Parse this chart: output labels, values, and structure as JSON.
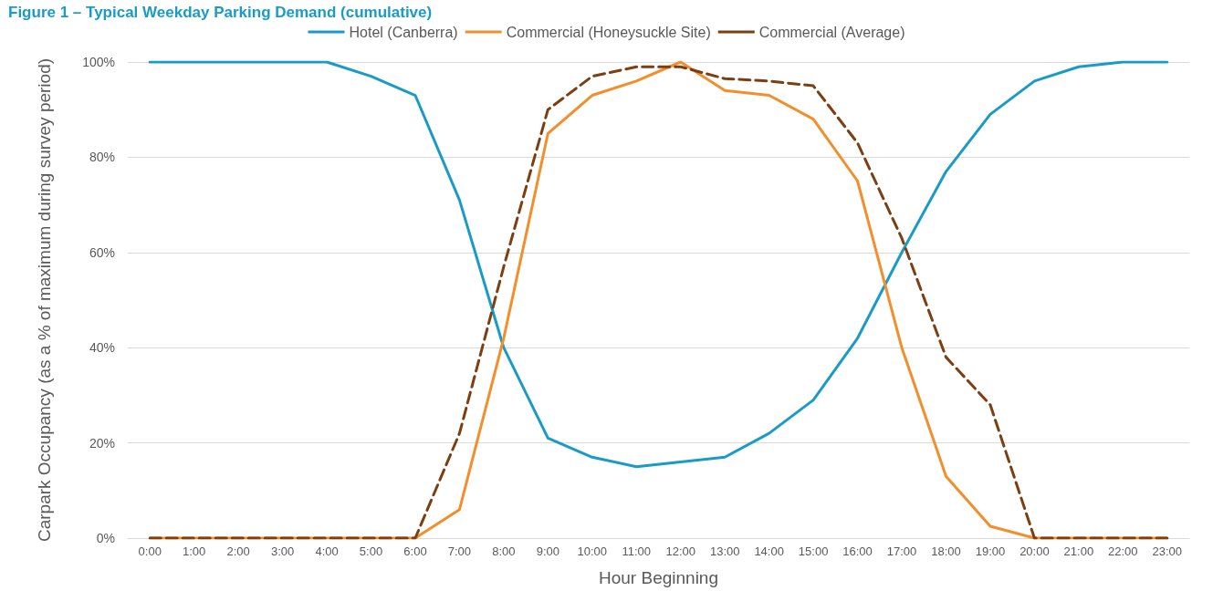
{
  "chart_data": {
    "type": "line",
    "title": "Figure 1 – Typical Weekday Parking Demand (cumulative)",
    "xlabel": "Hour Beginning",
    "ylabel": "Carpark Occupancy (as a % of maximum during survey period)",
    "categories": [
      "0:00",
      "1:00",
      "2:00",
      "3:00",
      "4:00",
      "5:00",
      "6:00",
      "7:00",
      "8:00",
      "9:00",
      "10:00",
      "11:00",
      "12:00",
      "13:00",
      "14:00",
      "15:00",
      "16:00",
      "17:00",
      "18:00",
      "19:00",
      "20:00",
      "21:00",
      "22:00",
      "23:00"
    ],
    "series": [
      {
        "name": "Hotel (Canberra)",
        "color": "#1a9bc6",
        "line_style": "solid",
        "values": [
          100,
          100,
          100,
          100,
          100,
          97,
          93,
          71,
          40,
          21,
          17,
          15,
          16,
          17,
          22,
          29,
          42,
          60,
          77,
          89,
          96,
          99,
          100,
          100
        ]
      },
      {
        "name": "Commercial (Honeysuckle Site)",
        "color": "#f28e2b",
        "line_style": "solid",
        "values": [
          0,
          0,
          0,
          0,
          0,
          0,
          0,
          6,
          42,
          85,
          93,
          96,
          100,
          94,
          93,
          88,
          75,
          40,
          13,
          2.5,
          0,
          0,
          0,
          0
        ]
      },
      {
        "name": "Commercial (Average)",
        "color": "#7b3f12",
        "line_style": "dashed",
        "values": [
          0,
          0,
          0,
          0,
          0,
          0,
          0,
          22,
          57,
          90,
          97,
          99,
          99,
          96.5,
          96,
          95,
          83,
          63,
          38,
          28,
          0,
          0,
          0,
          0
        ]
      }
    ],
    "ylim": [
      0,
      100
    ],
    "yticks": [
      {
        "value": 0,
        "label": "0%"
      },
      {
        "value": 20,
        "label": "20%"
      },
      {
        "value": 40,
        "label": "40%"
      },
      {
        "value": 60,
        "label": "60%"
      },
      {
        "value": 80,
        "label": "80%"
      },
      {
        "value": 100,
        "label": "100%"
      }
    ],
    "grid": "y",
    "legend": "top",
    "marker": "none"
  }
}
